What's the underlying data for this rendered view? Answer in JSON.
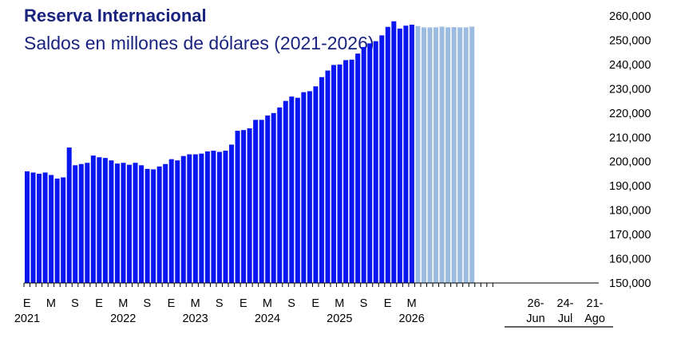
{
  "chart_data": {
    "type": "bar",
    "title": "Reserva Internacional",
    "subtitle": "Saldos en millones de dólares (2021-2026)",
    "ylim": [
      150000,
      260000
    ],
    "yticks": [
      "260,000",
      "250,000",
      "240,000",
      "230,000",
      "220,000",
      "210,000",
      "200,000",
      "190,000",
      "180,000",
      "170,000",
      "160,000",
      "150,000"
    ],
    "grid": false,
    "legend": "none",
    "colors": {
      "monthly": "#0a16f0",
      "weekly": "#9bbbe0"
    },
    "series": [
      {
        "values": [
          196000,
          195500,
          195000,
          195500,
          194500,
          193000,
          193500,
          205800,
          198500,
          199000,
          199500,
          202500,
          201800,
          201500,
          200500,
          199200,
          199500,
          198700,
          199500,
          198500,
          197000,
          196800,
          198000,
          199000,
          201000,
          200500,
          202300,
          203000,
          203000,
          203300,
          204200,
          204500,
          204000,
          204500,
          207000,
          212700,
          213000,
          213700,
          217200,
          217200,
          219000,
          220000,
          222300,
          225000,
          226800,
          226300,
          228600,
          229000,
          231000,
          234800,
          237500,
          239800,
          240000,
          241800,
          242000,
          244500,
          247200,
          248700,
          249600,
          252000,
          255500,
          257800,
          254800,
          256000,
          256400
        ]
      },
      {
        "values": [
          255800,
          255300,
          255300,
          255300,
          255600,
          255300,
          255400,
          255300,
          255300,
          255600
        ]
      }
    ],
    "x_month_labels": [
      "E",
      "M",
      "S",
      "E",
      "M",
      "S",
      "E",
      "M",
      "S",
      "E",
      "M",
      "S",
      "E",
      "M",
      "S",
      "E",
      "M"
    ],
    "x_year_labels": [
      "2021",
      "2022",
      "2023",
      "2024",
      "2025",
      "2026"
    ],
    "x_weekly_labels": [
      {
        "day": "26-",
        "month": "Jun"
      },
      {
        "day": "24-",
        "month": "Jul"
      },
      {
        "day": "21-",
        "month": "Ago"
      }
    ]
  }
}
